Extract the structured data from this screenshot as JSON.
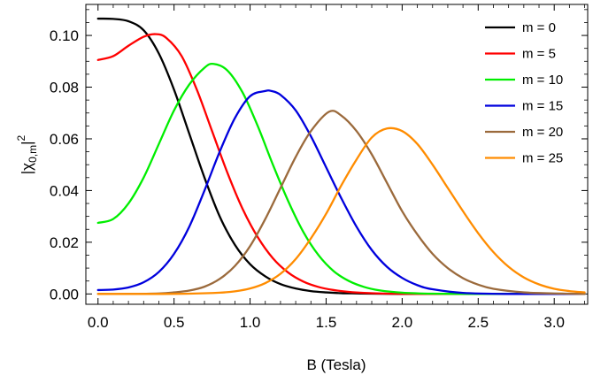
{
  "chart_data": {
    "type": "line",
    "xlabel": "B (Tesla)",
    "ylabel": "|χ",
    "ylabel_sub": "0,m",
    "ylabel_suffix": "|",
    "ylabel_sup": "2",
    "xlim": [
      -0.08,
      3.22
    ],
    "ylim": [
      -0.004,
      0.112
    ],
    "x_ticks": [
      0.0,
      0.5,
      1.0,
      1.5,
      2.0,
      2.5,
      3.0
    ],
    "x_tick_labels": [
      "0.0",
      "0.5",
      "1.0",
      "1.5",
      "2.0",
      "2.5",
      "3.0"
    ],
    "y_ticks": [
      0.0,
      0.02,
      0.04,
      0.06,
      0.08,
      0.1
    ],
    "y_tick_labels": [
      "0.00",
      "0.02",
      "0.04",
      "0.06",
      "0.08",
      "0.10"
    ],
    "grid": false,
    "legend_position": "top-right",
    "series": [
      {
        "name": "m = 0",
        "color": "#000000",
        "x": [
          0.0,
          0.1,
          0.2,
          0.3,
          0.4,
          0.5,
          0.6,
          0.7,
          0.8,
          0.9,
          1.0,
          1.1,
          1.2,
          1.3,
          1.4,
          1.5,
          1.6,
          1.7,
          1.8,
          2.0,
          2.2,
          2.5,
          3.2
        ],
        "y": [
          0.1065,
          0.1064,
          0.1055,
          0.102,
          0.093,
          0.079,
          0.062,
          0.045,
          0.03,
          0.019,
          0.0115,
          0.0068,
          0.0038,
          0.0021,
          0.0011,
          0.0006,
          0.0003,
          0.0002,
          0.0001,
          0.0,
          0.0,
          0.0,
          0.0
        ]
      },
      {
        "name": "m = 5",
        "color": "#ff0000",
        "x": [
          0.0,
          0.1,
          0.2,
          0.3,
          0.38,
          0.45,
          0.55,
          0.65,
          0.75,
          0.85,
          0.95,
          1.05,
          1.15,
          1.25,
          1.35,
          1.45,
          1.55,
          1.65,
          1.75,
          1.9,
          2.1,
          2.4,
          3.2
        ],
        "y": [
          0.0905,
          0.092,
          0.096,
          0.0995,
          0.1005,
          0.099,
          0.092,
          0.079,
          0.063,
          0.047,
          0.033,
          0.022,
          0.0138,
          0.0083,
          0.0048,
          0.0027,
          0.0015,
          0.0008,
          0.0004,
          0.0001,
          0.0,
          0.0,
          0.0
        ]
      },
      {
        "name": "m = 10",
        "color": "#00ee00",
        "x": [
          0.0,
          0.1,
          0.2,
          0.3,
          0.4,
          0.5,
          0.6,
          0.7,
          0.76,
          0.85,
          0.95,
          1.05,
          1.15,
          1.25,
          1.35,
          1.45,
          1.55,
          1.65,
          1.75,
          1.85,
          2.0,
          2.2,
          2.5,
          3.2
        ],
        "y": [
          0.0275,
          0.029,
          0.035,
          0.045,
          0.058,
          0.071,
          0.081,
          0.0875,
          0.089,
          0.0865,
          0.078,
          0.065,
          0.05,
          0.036,
          0.024,
          0.015,
          0.0088,
          0.005,
          0.0027,
          0.0014,
          0.0005,
          0.0001,
          0.0,
          0.0
        ]
      },
      {
        "name": "m = 15",
        "color": "#0000dd",
        "x": [
          0.0,
          0.1,
          0.2,
          0.3,
          0.4,
          0.5,
          0.6,
          0.7,
          0.8,
          0.9,
          1.0,
          1.1,
          1.14,
          1.2,
          1.3,
          1.4,
          1.5,
          1.6,
          1.7,
          1.8,
          1.9,
          2.0,
          2.1,
          2.2,
          2.4,
          2.7,
          3.2
        ],
        "y": [
          0.0015,
          0.0017,
          0.0025,
          0.0045,
          0.0085,
          0.0155,
          0.026,
          0.04,
          0.055,
          0.068,
          0.0765,
          0.0785,
          0.0785,
          0.077,
          0.071,
          0.061,
          0.049,
          0.037,
          0.026,
          0.017,
          0.0105,
          0.0062,
          0.0034,
          0.0018,
          0.0004,
          0.0,
          0.0
        ]
      },
      {
        "name": "m = 20",
        "color": "#9b6a3c",
        "x": [
          0.0,
          0.2,
          0.4,
          0.5,
          0.6,
          0.7,
          0.8,
          0.9,
          1.0,
          1.1,
          1.2,
          1.3,
          1.4,
          1.52,
          1.6,
          1.7,
          1.8,
          1.9,
          2.0,
          2.1,
          2.2,
          2.3,
          2.4,
          2.5,
          2.6,
          2.8,
          3.0,
          3.2
        ],
        "y": [
          0.0,
          0.0,
          0.0002,
          0.0006,
          0.0013,
          0.0028,
          0.0058,
          0.0108,
          0.0185,
          0.029,
          0.041,
          0.053,
          0.063,
          0.0705,
          0.069,
          0.063,
          0.054,
          0.043,
          0.032,
          0.023,
          0.0155,
          0.01,
          0.0061,
          0.0036,
          0.002,
          0.0006,
          0.0002,
          0.0
        ]
      },
      {
        "name": "m = 25",
        "color": "#ff8c00",
        "x": [
          0.0,
          0.4,
          0.6,
          0.8,
          0.9,
          1.0,
          1.1,
          1.2,
          1.3,
          1.4,
          1.5,
          1.6,
          1.7,
          1.8,
          1.9,
          2.0,
          2.1,
          2.2,
          2.3,
          2.4,
          2.5,
          2.6,
          2.7,
          2.8,
          2.9,
          3.0,
          3.1,
          3.2
        ],
        "y": [
          0.0,
          0.0,
          0.0001,
          0.0005,
          0.001,
          0.0021,
          0.0042,
          0.0078,
          0.0135,
          0.0215,
          0.031,
          0.042,
          0.052,
          0.0605,
          0.064,
          0.063,
          0.058,
          0.05,
          0.041,
          0.032,
          0.0235,
          0.0162,
          0.0105,
          0.0064,
          0.0037,
          0.002,
          0.0011,
          0.0006
        ]
      }
    ]
  }
}
